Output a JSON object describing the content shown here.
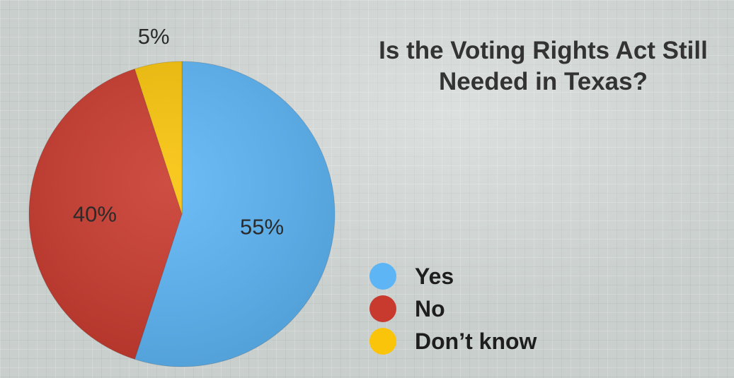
{
  "chart_data": {
    "type": "pie",
    "title": "Is the Voting Rights Act Still Needed in Texas?",
    "categories": [
      "Yes",
      "No",
      "Don’t know"
    ],
    "values": [
      55,
      40,
      5
    ],
    "value_labels": [
      "55%",
      "40%",
      "5%"
    ],
    "colors": [
      "#5db5f5",
      "#c93a2e",
      "#f9c40a"
    ],
    "legend_position": "bottom-right"
  }
}
